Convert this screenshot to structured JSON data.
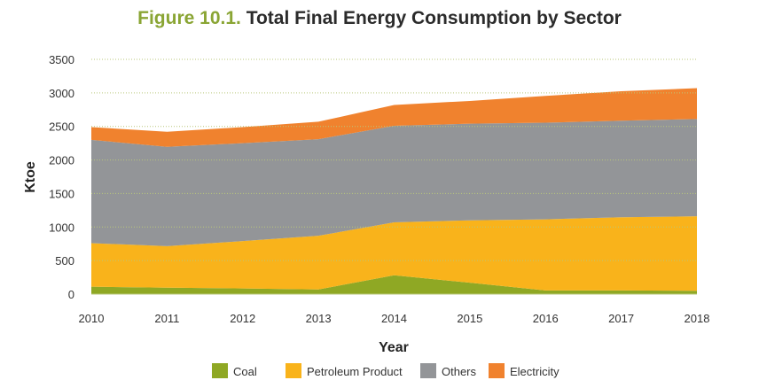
{
  "figure_label": "Figure 10.1.",
  "figure_title": "Total Final Energy Consumption by Sector",
  "colors": {
    "coal": "#8fa824",
    "petroleum": "#f9b31b",
    "others": "#939598",
    "electricity": "#f0822e",
    "title_accent": "#8aa534",
    "grid": "#b9c77a"
  },
  "chart_data": {
    "type": "area",
    "stacked": true,
    "title": "Figure 10.1. Total Final Energy Consumption by Sector",
    "xlabel": "Year",
    "ylabel": "Ktoe",
    "x": [
      2010,
      2011,
      2012,
      2013,
      2014,
      2015,
      2016,
      2017,
      2018
    ],
    "x_ticks": [
      "2010",
      "2011",
      "2012",
      "2013",
      "2014",
      "2015",
      "2016",
      "2017",
      "2018"
    ],
    "y_ticks": [
      "0",
      "500",
      "1000",
      "1500",
      "2000",
      "2500",
      "3000",
      "3500"
    ],
    "ylim": [
      0,
      3500
    ],
    "grid": true,
    "legend_position": "bottom",
    "series": [
      {
        "name": "Coal",
        "color": "#8fa824",
        "values": [
          110,
          95,
          85,
          70,
          280,
          170,
          55,
          55,
          50
        ]
      },
      {
        "name": "Petroleum Product",
        "color": "#f9b31b",
        "values": [
          650,
          620,
          705,
          800,
          790,
          930,
          1060,
          1090,
          1110
        ]
      },
      {
        "name": "Others",
        "color": "#939598",
        "values": [
          1540,
          1480,
          1460,
          1440,
          1440,
          1440,
          1440,
          1440,
          1450
        ]
      },
      {
        "name": "Electricity",
        "color": "#f0822e",
        "values": [
          190,
          225,
          240,
          260,
          310,
          340,
          400,
          440,
          460
        ]
      }
    ]
  }
}
